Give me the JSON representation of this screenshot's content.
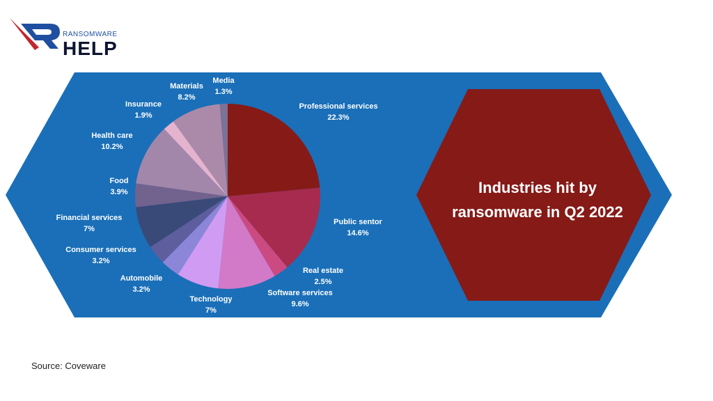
{
  "brand": {
    "small": "RANSOMWARE",
    "big": "HELP"
  },
  "colors": {
    "panel": "#1a6fb8",
    "hexagon": "#861a17",
    "logo_blue": "#1f4fa0",
    "logo_red": "#c0282d"
  },
  "chart_data": {
    "type": "pie",
    "title": "Industries hit by ransomware in Q2 2022",
    "title_lines": [
      "Industries hit by",
      "ransomware in Q2 2022"
    ],
    "slices": [
      {
        "label": "Professional services",
        "value": 22.3,
        "display": "22.3%",
        "color": "#861a17"
      },
      {
        "label": "Public sentor",
        "value": 14.6,
        "display": "14.6%",
        "color": "#a62b4e"
      },
      {
        "label": "Real estate",
        "value": 2.5,
        "display": "2.5%",
        "color": "#cc4a82"
      },
      {
        "label": "Software services",
        "value": 9.6,
        "display": "9.6%",
        "color": "#d279c8"
      },
      {
        "label": "Technology",
        "value": 7,
        "display": "7%",
        "color": "#d09bf2"
      },
      {
        "label": "Automobile",
        "value": 3.2,
        "display": "3.2%",
        "color": "#8b86d8"
      },
      {
        "label": "Consumer services",
        "value": 3.2,
        "display": "3.2%",
        "color": "#5e5e9e"
      },
      {
        "label": "Financial services",
        "value": 7,
        "display": "7%",
        "color": "#3a4a78"
      },
      {
        "label": "Food",
        "value": 3.9,
        "display": "3.9%",
        "color": "#72628e"
      },
      {
        "label": "Health care",
        "value": 10.2,
        "display": "10.2%",
        "color": "#a287ab"
      },
      {
        "label": "Insurance",
        "value": 1.9,
        "display": "1.9%",
        "color": "#e6b3cf"
      },
      {
        "label": "Materials",
        "value": 8.2,
        "display": "8.2%",
        "color": "#ab8aa9"
      },
      {
        "label": "Media",
        "value": 1.3,
        "display": "1.3%",
        "color": "#7d7195"
      }
    ]
  },
  "source": "Source: Coveware"
}
